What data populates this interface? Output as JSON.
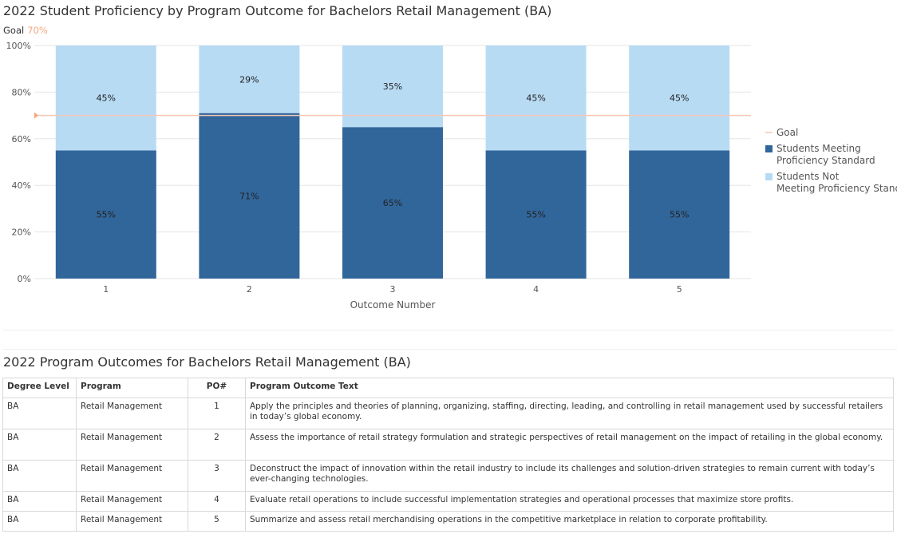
{
  "chart_data": {
    "type": "bar",
    "stacked": true,
    "title": "2022 Student Proficiency by Program Outcome for Bachelors Retail Management (BA)",
    "goal_text": "Goal",
    "goal_value_label": "70%",
    "goal_value": 70,
    "categories": [
      "1",
      "2",
      "3",
      "4",
      "5"
    ],
    "series": [
      {
        "name": "Students Meeting Proficiency Standard",
        "values": [
          55,
          71,
          65,
          55,
          55
        ],
        "labels": [
          "55%",
          "71%",
          "65%",
          "55%",
          "55%"
        ],
        "color": "#31669b"
      },
      {
        "name": "Students Not Meeting Proficiency Standard",
        "values": [
          45,
          29,
          35,
          45,
          45
        ],
        "labels": [
          "45%",
          "29%",
          "35%",
          "45%",
          "45%"
        ],
        "color": "#b8dbf4"
      }
    ],
    "goal_line": {
      "name": "Goal",
      "value": 70,
      "color": "#f4c8b4"
    },
    "legend_position": "right",
    "xlabel": "Outcome Number",
    "ylabel": "",
    "ylim": [
      0,
      100
    ],
    "yticks": [
      0,
      20,
      40,
      60,
      80,
      100
    ],
    "ytick_labels": [
      "0%",
      "20%",
      "40%",
      "60%",
      "80%",
      "100%"
    ],
    "grid": true
  },
  "table": {
    "title": "2022 Program Outcomes for Bachelors Retail Management (BA)",
    "headers": [
      "Degree Level",
      "Program",
      "PO#",
      "Program Outcome Text"
    ],
    "rows": [
      {
        "degree": "BA",
        "program": "Retail Management",
        "po": "1",
        "text": "Apply the principles and theories of planning, organizing, staffing, directing, leading, and controlling in retail management used by successful retailers in today’s global economy."
      },
      {
        "degree": "BA",
        "program": "Retail Management",
        "po": "2",
        "text": "Assess the importance of retail strategy formulation and strategic perspectives of retail management on the impact of retailing in the global economy."
      },
      {
        "degree": "BA",
        "program": "Retail Management",
        "po": "3",
        "text": "Deconstruct the impact of innovation within the retail industry to include its challenges and solution-driven strategies to remain current with today’s ever-changing technologies."
      },
      {
        "degree": "BA",
        "program": "Retail Management",
        "po": "4",
        "text": "Evaluate retail operations to include successful implementation strategies and operational processes that maximize store profits."
      },
      {
        "degree": "BA",
        "program": "Retail Management",
        "po": "5",
        "text": "Summarize and assess retail merchandising operations in the competitive marketplace in relation to corporate profitability."
      }
    ]
  }
}
